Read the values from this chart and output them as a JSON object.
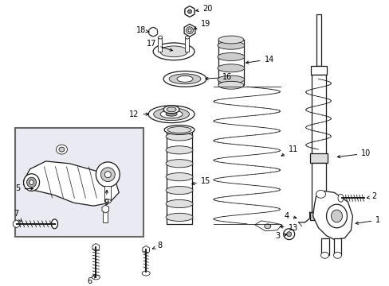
{
  "bg_color": "#ffffff",
  "line_color": "#1a1a1a",
  "label_color": "#000000",
  "box_fill": "#eaeaf2",
  "box_edge": "#666666",
  "figsize": [
    4.89,
    3.6
  ],
  "dpi": 100
}
